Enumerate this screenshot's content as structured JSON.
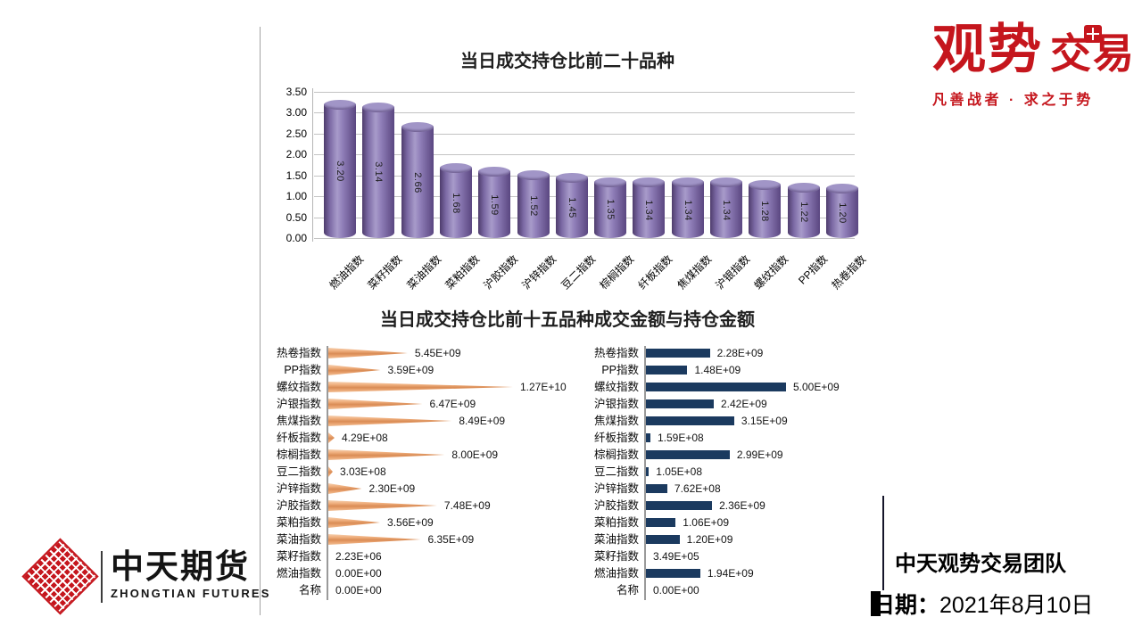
{
  "brand_right": {
    "name_part1": "观势",
    "name_part2": "交易",
    "tagline": "凡善战者 · 求之于势",
    "color": "#c5161d"
  },
  "brand_left": {
    "cn": "中天期货",
    "en": "ZHONGTIAN FUTURES",
    "mark_color": "#c5161d"
  },
  "footer": {
    "team": "中天观势交易团队",
    "date_label": "日期：",
    "date_value": "2021年8月10日"
  },
  "chart_data": [
    {
      "type": "bar",
      "style": "3d-cylinder",
      "title": "当日成交持仓比前二十品种",
      "categories": [
        "燃油指数",
        "菜籽指数",
        "菜油指数",
        "菜粕指数",
        "沪胶指数",
        "沪锌指数",
        "豆二指数",
        "棕榈指数",
        "纤板指数",
        "焦煤指数",
        "沪银指数",
        "螺纹指数",
        "PP指数",
        "热卷指数"
      ],
      "values": [
        3.2,
        3.14,
        2.66,
        1.68,
        1.59,
        1.52,
        1.45,
        1.35,
        1.34,
        1.34,
        1.34,
        1.28,
        1.22,
        1.2
      ],
      "ylim": [
        0,
        3.5
      ],
      "ytick_step": 0.5,
      "bar_color": "#7b68a2",
      "grid": true,
      "legend": "none"
    },
    {
      "type": "bar",
      "orientation": "horizontal",
      "title": "当日成交持仓比前十五品种成交金额与持仓金额",
      "categories": [
        "热卷指数",
        "PP指数",
        "螺纹指数",
        "沪银指数",
        "焦煤指数",
        "纤板指数",
        "棕榈指数",
        "豆二指数",
        "沪锌指数",
        "沪胶指数",
        "菜粕指数",
        "菜油指数",
        "菜籽指数",
        "燃油指数",
        "名称"
      ],
      "series": [
        {
          "id": "left-panel",
          "shape": "cone",
          "color": "#eda871",
          "values": [
            5450000000.0,
            3590000000.0,
            12700000000.0,
            6470000000.0,
            8490000000.0,
            429000000.0,
            8000000000.0,
            303000000.0,
            2300000000.0,
            7480000000.0,
            3560000000.0,
            6350000000.0,
            2230000.0,
            0,
            0
          ],
          "labels": [
            "5.45E+09",
            "3.59E+09",
            "1.27E+10",
            "6.47E+09",
            "8.49E+09",
            "4.29E+08",
            "8.00E+09",
            "3.03E+08",
            "2.30E+09",
            "7.48E+09",
            "3.56E+09",
            "6.35E+09",
            "2.23E+06",
            "0.00E+00",
            "0.00E+00"
          ]
        },
        {
          "id": "right-panel",
          "shape": "rect",
          "color": "#1b3a5f",
          "values": [
            2280000000.0,
            1480000000.0,
            5000000000.0,
            2420000000.0,
            3150000000.0,
            159000000.0,
            2990000000.0,
            105000000.0,
            762000000.0,
            2360000000.0,
            1060000000.0,
            1200000000.0,
            349000.0,
            1940000000.0,
            0
          ],
          "labels": [
            "2.28E+09",
            "1.48E+09",
            "5.00E+09",
            "2.42E+09",
            "3.15E+09",
            "1.59E+08",
            "2.99E+09",
            "1.05E+08",
            "7.62E+08",
            "2.36E+09",
            "1.06E+09",
            "1.20E+09",
            "3.49E+05",
            "1.94E+09",
            "0.00E+00"
          ]
        }
      ],
      "grid": false,
      "legend": "none"
    }
  ]
}
